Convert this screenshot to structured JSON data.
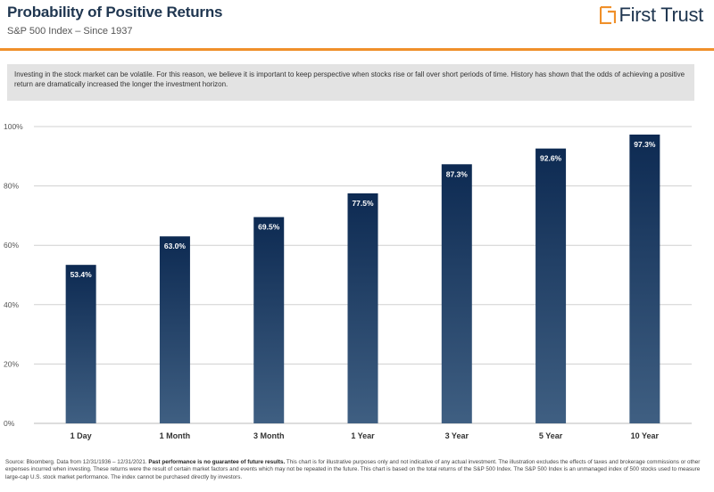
{
  "header": {
    "title": "Probability of Positive Returns",
    "subtitle": "S&P 500 Index – Since 1937",
    "brand": "First Trust"
  },
  "intro_text": "Investing in the stock market can be volatile. For this reason, we believe it is important to keep perspective when stocks rise or fall over short periods of time. History has shown that the odds of achieving a positive return are dramatically increased the longer the investment horizon.",
  "footnote": {
    "prefix": "Source: Bloomberg. Data from 12/31/1936 – 12/31/2021. ",
    "bold": "Past performance is no guarantee of future results.",
    "suffix": " This chart is for illustrative purposes only and not indicative of any actual investment. The illustration excludes the effects of taxes and brokerage commissions or other expenses incurred when investing. These returns were the result of certain market factors and events which may not be repeated in the future. This chart is based on the total returns of the S&P 500 Index. The S&P 500 Index is an unmanaged index of 500 stocks used to measure large-cap U.S. stock market performance. The index cannot be purchased directly by investors."
  },
  "colors": {
    "bar_top": "#0d2a52",
    "bar_bottom": "#3f5f82",
    "accent": "#f0902a",
    "title": "#1f3650",
    "grid": "#d0d0d0"
  },
  "chart_data": {
    "type": "bar",
    "categories": [
      "1 Day",
      "1 Month",
      "3 Month",
      "1 Year",
      "3 Year",
      "5 Year",
      "10  Year"
    ],
    "values": [
      53.4,
      63.0,
      69.5,
      77.5,
      87.3,
      92.6,
      97.3
    ],
    "data_labels": [
      "53.4%",
      "63.0%",
      "69.5%",
      "77.5%",
      "87.3%",
      "92.6%",
      "97.3%"
    ],
    "ylim": [
      0,
      100
    ],
    "yticks": [
      0,
      20,
      40,
      60,
      80,
      100
    ],
    "ytick_labels": [
      "0%",
      "20%",
      "40%",
      "60%",
      "80%",
      "100%"
    ],
    "grid": true,
    "legend": "none"
  }
}
